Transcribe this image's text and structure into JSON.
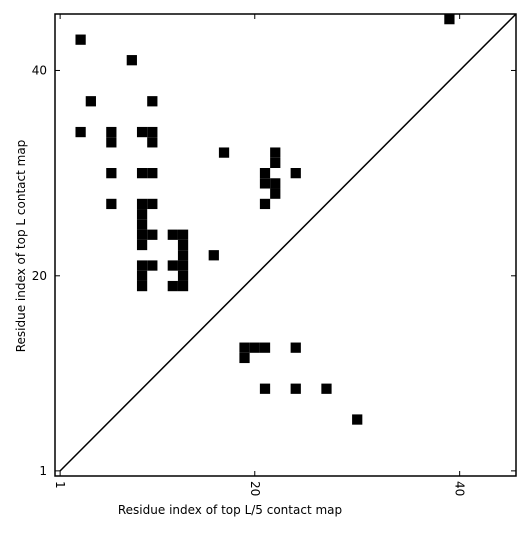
{
  "chart_data": {
    "type": "scatter",
    "marker": "square",
    "color": "#000000",
    "xlabel": "Residue index of top L/5 contact map",
    "ylabel": "Residue index of top L contact map",
    "xlim": [
      0.5,
      45.5
    ],
    "ylim": [
      0.5,
      45.5
    ],
    "xticks": [
      1,
      20,
      40
    ],
    "yticks": [
      1,
      20,
      40
    ],
    "x": [
      39,
      3,
      8,
      4,
      10,
      3,
      6,
      6,
      9,
      10,
      10,
      17,
      22,
      22,
      6,
      9,
      10,
      21,
      21,
      22,
      22,
      24,
      6,
      9,
      10,
      9,
      9,
      9,
      10,
      9,
      21,
      12,
      13,
      13,
      13,
      13,
      12,
      13,
      13,
      12,
      9,
      10,
      9,
      9,
      16,
      19,
      20,
      21,
      19,
      24,
      21,
      24,
      27,
      30
    ],
    "y": [
      45,
      43,
      41,
      37,
      37,
      34,
      34,
      33,
      34,
      34,
      33,
      32,
      32,
      31,
      30,
      30,
      30,
      30,
      29,
      29,
      28,
      30,
      27,
      27,
      27,
      26,
      25,
      24,
      24,
      23,
      27,
      24,
      24,
      23,
      22,
      21,
      21,
      20,
      19,
      19,
      21,
      21,
      20,
      19,
      22,
      13,
      13,
      13,
      12,
      13,
      9,
      9,
      9,
      6
    ]
  }
}
